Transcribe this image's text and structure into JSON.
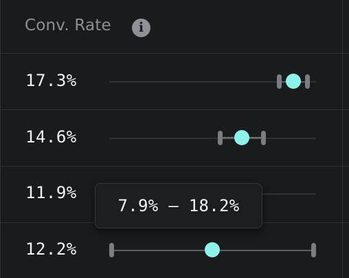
{
  "header": {
    "label": "Conv. Rate",
    "info_icon": "info-icon"
  },
  "rows": [
    {
      "value": "17.3%",
      "point": 17.3
    },
    {
      "value": "14.6%",
      "point": 14.6
    },
    {
      "value": "11.9%",
      "point": 11.9
    },
    {
      "value": "12.2%",
      "point": 12.2
    }
  ],
  "tooltip": {
    "text": "7.9% – 18.2%"
  },
  "colors": {
    "background": "#1a1b1d",
    "marker": "#8df3ea",
    "grid": "#2e3033",
    "header_text": "#8d8f94",
    "value_text": "#f2f3f5"
  }
}
